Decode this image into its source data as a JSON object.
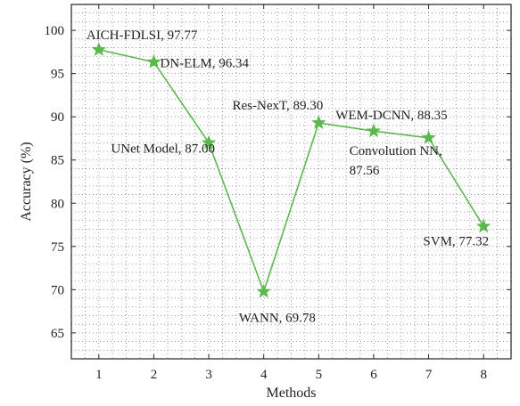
{
  "chart_data": {
    "type": "line",
    "xlabel": "Methods",
    "ylabel": "Accuracy (%)",
    "x": [
      1,
      2,
      3,
      4,
      5,
      6,
      7,
      8
    ],
    "xlim": [
      0.5,
      8.5
    ],
    "ylim": [
      62,
      103
    ],
    "xticks": [
      "1",
      "2",
      "3",
      "4",
      "5",
      "6",
      "7",
      "8"
    ],
    "yticks": [
      "65",
      "70",
      "75",
      "80",
      "85",
      "90",
      "95",
      "100"
    ],
    "grid": true,
    "legend": "none",
    "marker": "star",
    "color": "#5bb84d",
    "series": [
      {
        "values": [
          97.77,
          96.34,
          87.0,
          69.78,
          89.3,
          88.35,
          87.56,
          77.32
        ],
        "point_labels": [
          "AICH-FDLSI, 97.77",
          "DN-ELM, 96.34",
          "UNet Model, 87.00",
          "WANN, 69.78",
          "Res-NexT, 89.30",
          "WEM-DCNN, 88.35",
          "Convolution NN,|87.56",
          "SVM, 77.32"
        ]
      }
    ]
  }
}
